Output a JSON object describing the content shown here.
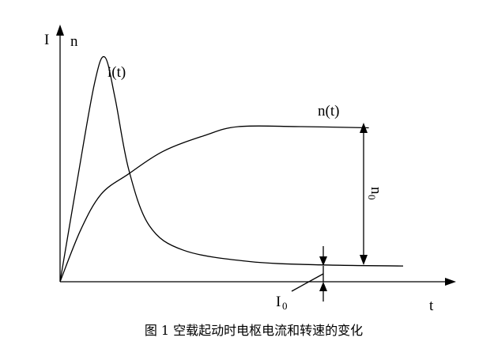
{
  "chart_data": {
    "type": "line",
    "title": "",
    "caption": "图 1 空载起动时电枢电流和转速的变化",
    "axes": {
      "y_labels": [
        "I",
        "n"
      ],
      "x_label": "t",
      "ticks": "none",
      "grid": false
    },
    "series": [
      {
        "name": "i(t)",
        "description_points": [
          [
            0,
            0
          ],
          [
            0.05,
            0.45
          ],
          [
            0.1,
            0.88
          ],
          [
            0.13,
            1.0
          ],
          [
            0.16,
            0.82
          ],
          [
            0.2,
            0.5
          ],
          [
            0.26,
            0.25
          ],
          [
            0.36,
            0.14
          ],
          [
            0.55,
            0.09
          ],
          [
            0.76,
            0.075
          ],
          [
            1.0,
            0.07
          ]
        ]
      },
      {
        "name": "n(t)",
        "description_points": [
          [
            0,
            0
          ],
          [
            0.06,
            0.23
          ],
          [
            0.12,
            0.39
          ],
          [
            0.2,
            0.48
          ],
          [
            0.3,
            0.58
          ],
          [
            0.42,
            0.65
          ],
          [
            0.52,
            0.69
          ],
          [
            0.7,
            0.69
          ],
          [
            0.9,
            0.685
          ]
        ]
      }
    ],
    "annotations": [
      {
        "label": "n",
        "subscript": "0",
        "meaning": "steady-state speed, double arrow from baseline to n(t) plateau"
      },
      {
        "label": "I",
        "subscript": "0",
        "meaning": "no-load current, arrows pointing at i(t) final level"
      }
    ]
  }
}
